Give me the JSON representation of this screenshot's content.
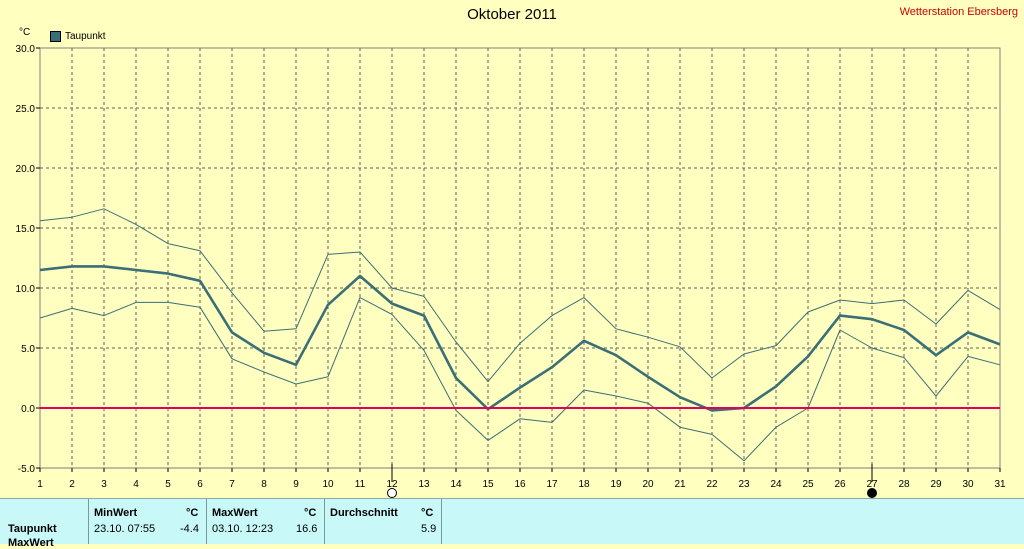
{
  "header": {
    "title": "Oktober 2011",
    "station": "Wetterstation Ebersberg",
    "unit": "°C",
    "legend_label": "Taupunkt"
  },
  "chart_data": {
    "type": "line",
    "title": "Oktober 2011",
    "ylabel": "°C",
    "ylim": [
      -5,
      30
    ],
    "yticks": [
      "30.0",
      "25.0",
      "20.0",
      "15.0",
      "10.0",
      "5.0",
      "0.0",
      "-5.0"
    ],
    "ytick_values": [
      30,
      25,
      20,
      15,
      10,
      5,
      0,
      -5
    ],
    "x": [
      1,
      2,
      3,
      4,
      5,
      6,
      7,
      8,
      9,
      10,
      11,
      12,
      13,
      14,
      15,
      16,
      17,
      18,
      19,
      20,
      21,
      22,
      23,
      24,
      25,
      26,
      27,
      28,
      29,
      30,
      31
    ],
    "xlim": [
      1,
      31
    ],
    "grid": true,
    "legend": "top-left",
    "series": [
      {
        "name": "Taupunkt",
        "color": "#3a6f78",
        "values": [
          11.5,
          11.8,
          11.8,
          11.5,
          11.2,
          10.6,
          6.3,
          4.6,
          3.6,
          8.6,
          11.0,
          8.7,
          7.7,
          2.5,
          -0.1,
          1.7,
          3.4,
          5.6,
          4.4,
          2.6,
          0.9,
          -0.2,
          0.0,
          1.8,
          4.3,
          7.7,
          7.4,
          6.5,
          4.4,
          6.3,
          5.3
        ]
      },
      {
        "role": "daily maximum",
        "color": "#3a6f78",
        "values": [
          15.6,
          15.9,
          16.6,
          15.3,
          13.7,
          13.1,
          9.6,
          6.4,
          6.6,
          12.8,
          13.0,
          10.0,
          9.3,
          5.5,
          2.2,
          5.4,
          7.7,
          9.2,
          6.6,
          5.9,
          5.1,
          2.5,
          4.5,
          5.2,
          8.0,
          9.0,
          8.7,
          9.0,
          7.0,
          9.8,
          8.2
        ]
      },
      {
        "role": "daily minimum",
        "color": "#3a6f78",
        "values": [
          7.5,
          8.3,
          7.7,
          8.8,
          8.8,
          8.4,
          4.1,
          3.0,
          2.0,
          2.6,
          9.2,
          7.8,
          4.8,
          -0.2,
          -2.7,
          -0.9,
          -1.2,
          1.5,
          1.0,
          0.4,
          -1.6,
          -2.2,
          -4.4,
          -1.6,
          0.0,
          6.5,
          5.0,
          4.2,
          1.0,
          4.3,
          3.6
        ]
      }
    ],
    "reference_line": {
      "value": 0,
      "color": "#e0005a"
    },
    "moon_markers": [
      {
        "x": 12,
        "phase": "full-moon"
      },
      {
        "x": 27,
        "phase": "new-moon"
      }
    ]
  },
  "stats": {
    "row_label": "Taupunkt",
    "row2_label_partial": "MaxWert",
    "min": {
      "header": "MinWert",
      "unit": "°C",
      "datetime": "23.10.  07:55",
      "value": "-4.4"
    },
    "max": {
      "header": "MaxWert",
      "unit": "°C",
      "datetime": "03.10.  12:23",
      "value": "16.6"
    },
    "avg": {
      "header": "Durchschnitt",
      "unit": "°C",
      "value": "5.9"
    }
  }
}
